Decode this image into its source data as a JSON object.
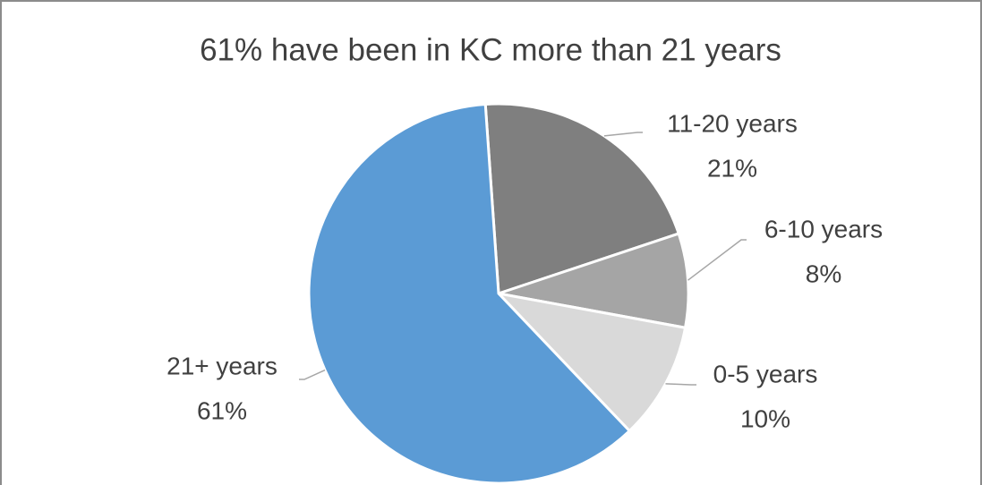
{
  "chart_data": {
    "type": "pie",
    "title": "61% have been in KC more than 21 years",
    "categories": [
      "11-20 years",
      "6-10 years",
      "0-5 years",
      "21+ years"
    ],
    "values": [
      21,
      8,
      10,
      61
    ],
    "value_labels": [
      "21%",
      "8%",
      "10%",
      "61%"
    ],
    "colors": [
      "#7f7f7f",
      "#a5a5a5",
      "#d9d9d9",
      "#5b9bd5"
    ]
  }
}
